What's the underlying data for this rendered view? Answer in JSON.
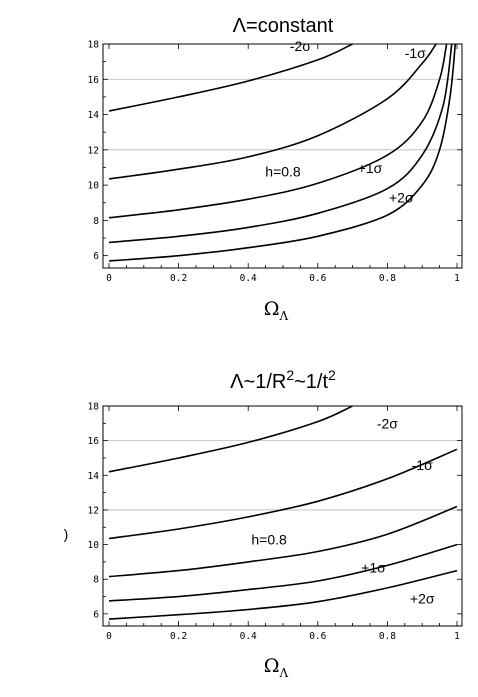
{
  "chart_data": [
    {
      "type": "line",
      "title": "Λ=constant",
      "xlabel": "Ω",
      "xlabel_sub": "Λ",
      "ylabel": "",
      "xlim": [
        0,
        1
      ],
      "ylim": [
        5.3,
        18
      ],
      "xticks": [
        "0",
        "0.2",
        "0.4",
        "0.6",
        "0.8",
        "1"
      ],
      "yticks": [
        "6",
        "8",
        "10",
        "12",
        "14",
        "16",
        "18"
      ],
      "grid_y": [
        12,
        16
      ],
      "series": [
        {
          "name": "-2σ",
          "label_at": [
            0.55,
            17.6
          ],
          "x": [
            0,
            0.2,
            0.4,
            0.6,
            0.7
          ],
          "y": [
            14.2,
            15.0,
            15.9,
            17.1,
            18.0
          ]
        },
        {
          "name": "-1σ",
          "label_at": [
            0.88,
            17.2
          ],
          "x": [
            0,
            0.2,
            0.4,
            0.6,
            0.8,
            0.9,
            0.94
          ],
          "y": [
            10.35,
            10.9,
            11.6,
            12.8,
            14.9,
            16.9,
            18.0
          ]
        },
        {
          "name": "h=0.8",
          "label_at": [
            0.5,
            10.5
          ],
          "x": [
            0,
            0.2,
            0.4,
            0.6,
            0.8,
            0.9,
            0.95,
            0.97
          ],
          "y": [
            8.15,
            8.6,
            9.2,
            10.1,
            11.7,
            13.6,
            16.0,
            18.0
          ]
        },
        {
          "name": "+1σ",
          "label_at": [
            0.75,
            10.7
          ],
          "x": [
            0,
            0.2,
            0.4,
            0.6,
            0.8,
            0.9,
            0.96,
            0.985
          ],
          "y": [
            6.75,
            7.1,
            7.6,
            8.4,
            9.8,
            11.7,
            14.5,
            18.0
          ]
        },
        {
          "name": "+2σ",
          "label_at": [
            0.84,
            9.0
          ],
          "x": [
            0,
            0.2,
            0.4,
            0.6,
            0.8,
            0.9,
            0.95,
            0.98,
            0.995
          ],
          "y": [
            5.7,
            6.0,
            6.45,
            7.1,
            8.3,
            10.0,
            12.0,
            15.0,
            18.0
          ]
        }
      ]
    },
    {
      "type": "line",
      "title": "Λ~1/R²~1/t²",
      "title_parts": [
        "Λ~1/R",
        "2",
        "~1/t",
        "2"
      ],
      "xlabel": "Ω",
      "xlabel_sub": "Λ",
      "ylabel": ")",
      "xlim": [
        0,
        1
      ],
      "ylim": [
        5.3,
        18
      ],
      "xticks": [
        "0",
        "0.2",
        "0.4",
        "0.6",
        "0.8",
        "1"
      ],
      "yticks": [
        "6",
        "8",
        "10",
        "12",
        "14",
        "16",
        "18"
      ],
      "grid_y": [
        12,
        16
      ],
      "series": [
        {
          "name": "-2σ",
          "label_at": [
            0.8,
            16.7
          ],
          "x": [
            0,
            0.2,
            0.4,
            0.6,
            0.7
          ],
          "y": [
            14.2,
            15.0,
            15.9,
            17.1,
            18.0
          ]
        },
        {
          "name": "-1σ",
          "label_at": [
            0.9,
            14.3
          ],
          "x": [
            0,
            0.2,
            0.4,
            0.6,
            0.8,
            1.0
          ],
          "y": [
            10.35,
            10.9,
            11.6,
            12.5,
            13.8,
            15.5
          ]
        },
        {
          "name": "h=0.8",
          "label_at": [
            0.46,
            10.0
          ],
          "x": [
            0,
            0.2,
            0.4,
            0.6,
            0.8,
            1.0
          ],
          "y": [
            8.15,
            8.5,
            9.0,
            9.6,
            10.6,
            12.2
          ]
        },
        {
          "name": "+1σ",
          "label_at": [
            0.76,
            8.4
          ],
          "x": [
            0,
            0.2,
            0.4,
            0.6,
            0.8,
            1.0
          ],
          "y": [
            6.75,
            7.0,
            7.4,
            7.9,
            8.8,
            10.0
          ]
        },
        {
          "name": "+2σ",
          "label_at": [
            0.9,
            6.6
          ],
          "x": [
            0,
            0.2,
            0.4,
            0.6,
            0.8,
            1.0
          ],
          "y": [
            5.7,
            5.95,
            6.25,
            6.7,
            7.5,
            8.5
          ]
        }
      ]
    }
  ]
}
